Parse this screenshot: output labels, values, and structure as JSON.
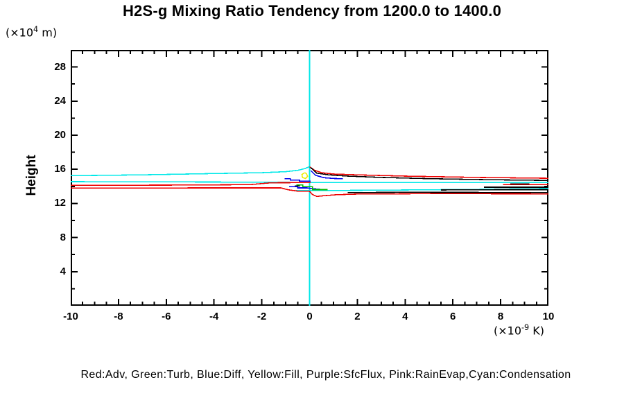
{
  "title": "H2S-g Mixing Ratio Tendency from 1200.0 to 1400.0",
  "y_axis": {
    "axis_label": "Height",
    "unit_prefix": "(×10",
    "unit_sup": "4",
    "unit_suffix": " m)",
    "major_ticks": [
      4,
      8,
      12,
      16,
      20,
      24,
      28
    ],
    "major_step": 4,
    "minor_step": 2,
    "range": [
      0,
      30
    ]
  },
  "x_axis": {
    "unit_prefix": "(×10",
    "unit_sup": "-9",
    "unit_suffix": " K)",
    "major_ticks": [
      -10,
      -8,
      -6,
      -4,
      -2,
      0,
      2,
      4,
      6,
      8,
      10
    ],
    "major_step": 2,
    "minor_step": 0.5,
    "range": [
      -10,
      10
    ]
  },
  "legend": {
    "text": "Red:Adv, Green:Turb, Blue:Diff, Yellow:Fill, Purple:SfcFlux, Pink:RainEvap,Cyan:Condensation"
  },
  "colors": {
    "red": "#ee0000",
    "green": "#00bb00",
    "blue": "#0000ee",
    "yellow": "#eded00",
    "cyan": "#00e8e8",
    "black": "#000000",
    "frame": "#000000"
  },
  "chart_data": {
    "type": "line",
    "title": "H2S-g Mixing Ratio Tendency from 1200.0 to 1400.0",
    "xlabel": "(x10^-9 K)",
    "ylabel": "Height (x10^4 m)",
    "xlim": [
      -10,
      10
    ],
    "ylim": [
      0,
      30
    ],
    "grid": false,
    "legend_note": "colors keyed to processes: Red=Adv, Green=Turb, Blue=Diff, Yellow=Fill, Purple=SfcFlux, Pink=RainEvap, Cyan=Condensation; black curve unlabeled",
    "series": [
      {
        "name": "condensation-vertical-zero-line",
        "color": "#00e8e8",
        "points": [
          [
            0,
            0
          ],
          [
            0,
            30
          ]
        ]
      },
      {
        "name": "condensation-left-rise",
        "color": "#00e8e8",
        "points": [
          [
            -10,
            15.25
          ],
          [
            -7,
            15.35
          ],
          [
            -4,
            15.5
          ],
          [
            -2,
            15.6
          ],
          [
            -1,
            15.72
          ],
          [
            -0.5,
            15.88
          ],
          [
            -0.2,
            16.08
          ],
          [
            0,
            16.32
          ]
        ]
      },
      {
        "name": "condensation-mid",
        "color": "#00e8e8",
        "points": [
          [
            -10,
            14.55
          ],
          [
            -2,
            14.5
          ],
          [
            0,
            14.45
          ],
          [
            10,
            14.45
          ]
        ]
      },
      {
        "name": "condensation-low",
        "color": "#00e8e8",
        "points": [
          [
            -0.6,
            13.5
          ],
          [
            3,
            13.55
          ],
          [
            7,
            13.65
          ],
          [
            10,
            13.75
          ]
        ]
      },
      {
        "name": "adv-left-upper",
        "color": "#ee0000",
        "points": [
          [
            -10,
            14.12
          ],
          [
            -6,
            14.15
          ],
          [
            -2.5,
            14.2
          ],
          [
            -1.6,
            14.42
          ],
          [
            0.05,
            14.45
          ]
        ]
      },
      {
        "name": "adv-left-lower",
        "color": "#ee0000",
        "points": [
          [
            -10,
            13.8
          ],
          [
            -4,
            13.82
          ],
          [
            -1.2,
            13.82
          ],
          [
            -0.9,
            13.6
          ],
          [
            -0.5,
            13.44
          ],
          [
            0,
            13.44
          ]
        ]
      },
      {
        "name": "adv-right-upper",
        "color": "#ee0000",
        "points": [
          [
            0,
            16.3
          ],
          [
            0.2,
            15.9
          ],
          [
            0.5,
            15.6
          ],
          [
            1,
            15.45
          ],
          [
            2,
            15.35
          ],
          [
            4,
            15.2
          ],
          [
            7,
            15.05
          ],
          [
            10,
            14.95
          ]
        ]
      },
      {
        "name": "adv-right-short",
        "color": "#ee0000",
        "points": [
          [
            8.1,
            14.22
          ],
          [
            10,
            14.22
          ]
        ]
      },
      {
        "name": "adv-right-lower",
        "color": "#ee0000",
        "points": [
          [
            0,
            13.42
          ],
          [
            0.12,
            13.05
          ],
          [
            0.3,
            12.82
          ],
          [
            0.6,
            12.9
          ],
          [
            1.1,
            13.02
          ],
          [
            2,
            13.1
          ],
          [
            5,
            13.15
          ],
          [
            10,
            13.12
          ]
        ]
      },
      {
        "name": "black-right-upper",
        "color": "#000000",
        "points": [
          [
            0.05,
            16.2
          ],
          [
            0.3,
            15.55
          ],
          [
            0.8,
            15.35
          ],
          [
            1.6,
            15.2
          ],
          [
            3,
            15.05
          ],
          [
            5,
            14.9
          ],
          [
            7.5,
            14.78
          ],
          [
            10,
            14.7
          ]
        ]
      },
      {
        "name": "black-right-mid-short",
        "color": "#000000",
        "points": [
          [
            8.4,
            14.3
          ],
          [
            9.2,
            14.3
          ]
        ]
      },
      {
        "name": "black-right-band",
        "color": "#000000",
        "points": [
          [
            7.3,
            13.9
          ],
          [
            10,
            13.9
          ]
        ]
      },
      {
        "name": "black-right-above-cyan",
        "color": "#000000",
        "points": [
          [
            5.5,
            13.58
          ],
          [
            8,
            13.62
          ],
          [
            10,
            13.62
          ]
        ]
      },
      {
        "name": "black-right-lower",
        "color": "#000000",
        "points": [
          [
            1.6,
            13.28
          ],
          [
            4,
            13.3
          ],
          [
            10,
            13.28
          ]
        ]
      },
      {
        "name": "black-left-short",
        "color": "#000000",
        "points": [
          [
            -0.62,
            14.05
          ],
          [
            -0.4,
            14.05
          ]
        ]
      },
      {
        "name": "diff-left",
        "color": "#0000ee",
        "points": [
          [
            -1.05,
            14.9
          ],
          [
            -0.8,
            14.9
          ],
          [
            -0.8,
            14.73
          ],
          [
            -0.42,
            14.73
          ],
          [
            -0.42,
            14.6
          ],
          [
            0.05,
            14.6
          ]
        ]
      },
      {
        "name": "diff-right",
        "color": "#0000ee",
        "points": [
          [
            0.05,
            15.85
          ],
          [
            0.25,
            15.3
          ],
          [
            0.6,
            15.02
          ],
          [
            1.05,
            14.92
          ],
          [
            1.4,
            14.9
          ]
        ]
      },
      {
        "name": "diff-center-low",
        "color": "#0000ee",
        "points": [
          [
            -0.85,
            13.95
          ],
          [
            -0.5,
            13.95
          ],
          [
            -0.5,
            13.82
          ],
          [
            -0.1,
            13.82
          ],
          [
            0.15,
            13.72
          ],
          [
            0.45,
            13.65
          ]
        ]
      },
      {
        "name": "turb-center",
        "color": "#00bb00",
        "points": [
          [
            -0.55,
            14.18
          ],
          [
            -0.28,
            14.18
          ],
          [
            -0.28,
            13.95
          ],
          [
            0.12,
            13.95
          ],
          [
            0.12,
            13.62
          ],
          [
            0.75,
            13.62
          ]
        ]
      },
      {
        "name": "fill-loop",
        "color": "#eded00",
        "points": [
          [
            -0.2,
            15.6
          ],
          [
            -0.32,
            15.4
          ],
          [
            -0.3,
            15.05
          ],
          [
            -0.17,
            14.92
          ],
          [
            -0.08,
            15.18
          ],
          [
            -0.14,
            15.5
          ],
          [
            -0.2,
            15.6
          ]
        ]
      }
    ]
  }
}
